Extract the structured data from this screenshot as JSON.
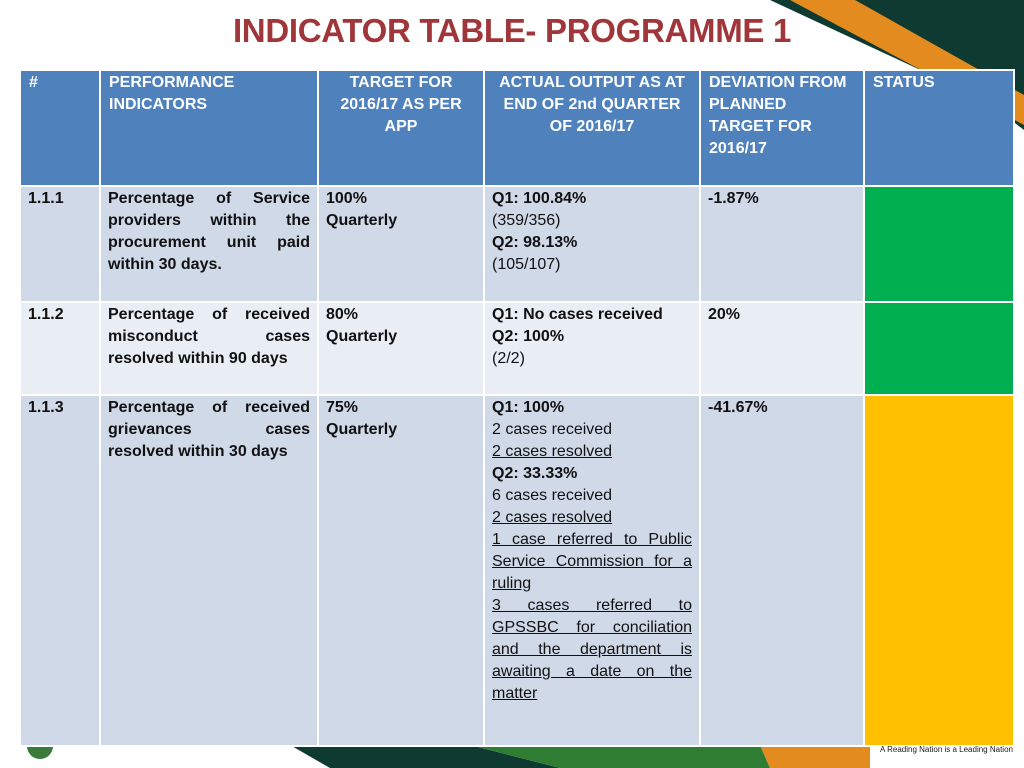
{
  "title": "INDICATOR TABLE- PROGRAMME 1",
  "colors": {
    "title": "#A0353A",
    "header_bg": "#4F81BD",
    "row_dark": "#D0D9E8",
    "row_light": "#E9EDF4",
    "status_green": "#00B050",
    "status_yellow": "#FFC000",
    "deco_dark_green": "#0E3A31",
    "deco_orange": "#E38B1F"
  },
  "headers": {
    "number": "#",
    "indicator": "PERFORMANCE INDICATORS",
    "target": "TARGET FOR 2016/17 AS PER APP",
    "actual": "ACTUAL OUTPUT AS AT END OF 2nd QUARTER OF 2016/17",
    "deviation": "DEVIATION FROM PLANNED TARGET FOR 2016/17",
    "status": "STATUS"
  },
  "rows": [
    {
      "number": "1.1.1",
      "indicator": "Percentage of Service providers within the procurement unit paid within 30 days.",
      "target_value": "100%",
      "target_period": "Quarterly",
      "q1_label": "Q1: 100.84%",
      "q1_detail": "(359/356)",
      "q2_label": "Q2: 98.13%",
      "q2_detail": "(105/107)",
      "deviation": "-1.87%",
      "status": "green"
    },
    {
      "number": "1.1.2",
      "indicator": "Percentage of received misconduct cases resolved within 90 days",
      "target_value": "80%",
      "target_period": "Quarterly",
      "q1_label": "Q1: No cases received",
      "q2_label": "Q2: 100%",
      "q2_detail": "(2/2)",
      "deviation": "20%",
      "status": "green"
    },
    {
      "number": "1.1.3",
      "indicator": "Percentage of received grievances cases resolved within 30 days",
      "target_value": "75%",
      "target_period": "Quarterly",
      "q1_label": "Q1: 100%",
      "q1_received": "2 cases received",
      "q1_resolved": "2 cases resolved",
      "q2_label": "Q2: 33.33%",
      "q2_received": "6 cases received",
      "q2_resolved": "2 cases resolved",
      "q2_note1": "1 case referred to Public Service Commission for a ruling",
      "q2_note2": "3 cases referred to GPSSBC for conciliation and the department is awaiting a date on the matter",
      "deviation": "-41.67%",
      "status": "yellow"
    }
  ],
  "footer": {
    "slogan": "A Reading Nation is a Leading Nation"
  }
}
